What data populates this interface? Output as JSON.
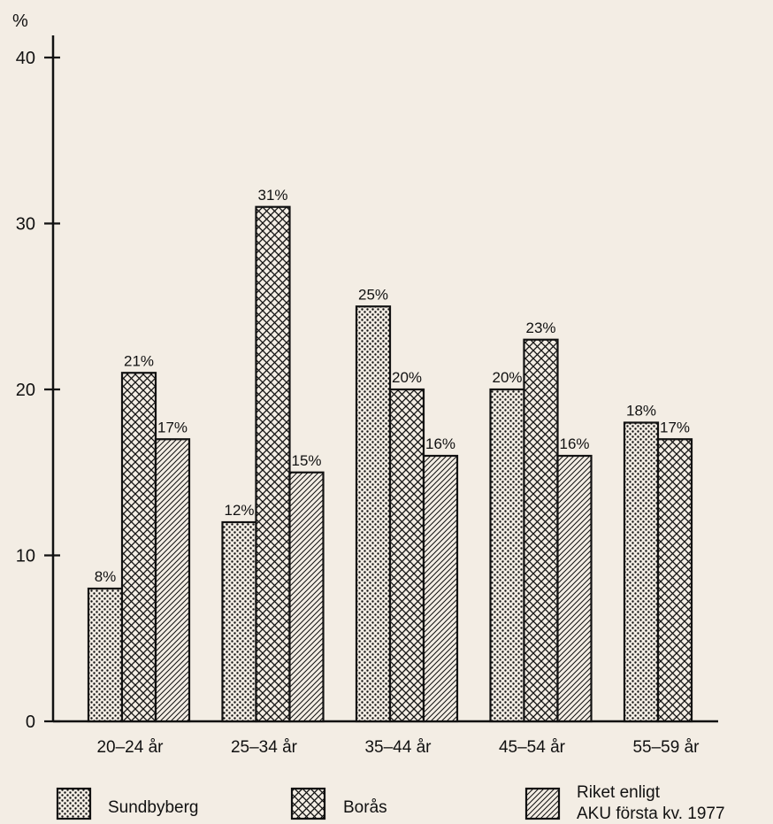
{
  "chart_data": {
    "type": "bar",
    "title": "",
    "ylabel": "%",
    "xlabel": "",
    "ylim": [
      0,
      40
    ],
    "yticks": [
      "0",
      "10",
      "20",
      "30",
      "40"
    ],
    "grid": false,
    "categories": [
      "20–24 år",
      "25–34 år",
      "35–44 år",
      "45–54 år",
      "55–59 år"
    ],
    "series": [
      {
        "name": "Sundbyberg",
        "pattern": "dots",
        "values": [
          8,
          12,
          25,
          20,
          18
        ],
        "labels": [
          "8%",
          "12%",
          "25%",
          "20%",
          "18%"
        ]
      },
      {
        "name": "Borås",
        "pattern": "crosshatch",
        "values": [
          21,
          31,
          20,
          23,
          17
        ],
        "labels": [
          "21%",
          "31%",
          "20%",
          "23%",
          "17%"
        ]
      },
      {
        "name": "Riket enligt AKU första kv. 1977",
        "name_lines": [
          "Riket enligt",
          "AKU första kv. 1977"
        ],
        "pattern": "diagonal",
        "values": [
          17,
          15,
          16,
          16,
          null
        ],
        "labels": [
          "17%",
          "15%",
          "16%",
          "16%",
          ""
        ]
      }
    ],
    "legend_position": "bottom",
    "colors": {
      "ink": "#111111",
      "paper": "#f3ede4"
    }
  }
}
